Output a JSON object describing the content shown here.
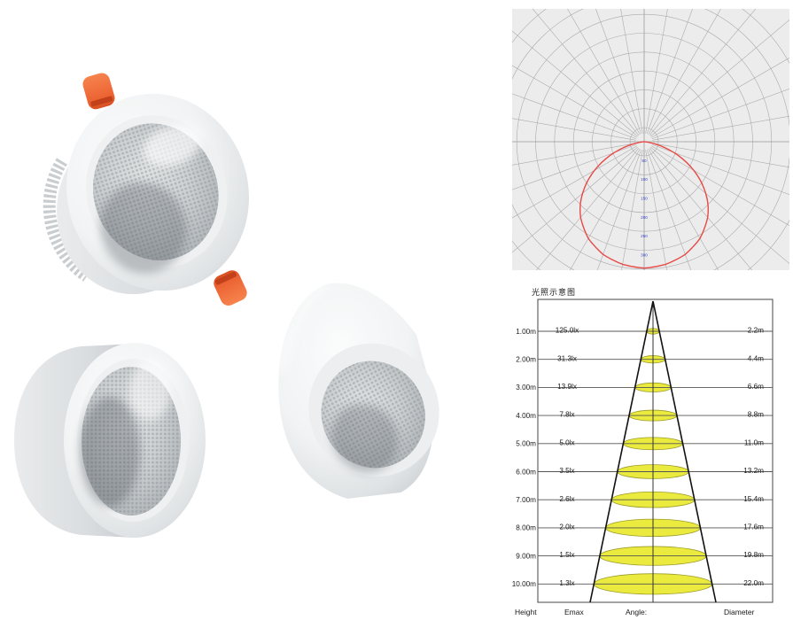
{
  "page": {
    "background": "#ffffff",
    "accent_orange": "#ee6a38",
    "curve_red": "#e64a45",
    "ellipse_yellow": "#ebeb3f",
    "ring_label_blue": "#3a46c8"
  },
  "products": {
    "items": [
      {
        "name": "recessed-downlight-three-quarter-view",
        "features": [
          "white-bezel",
          "faceted-lens",
          "orange-spring-clips",
          "ribbed-heatsink"
        ]
      },
      {
        "name": "surface-downlight-front-view",
        "features": [
          "white-cylinder-body",
          "faceted-lens"
        ]
      },
      {
        "name": "angled-cone-downlight-view",
        "features": [
          "white-teardrop-body",
          "faceted-lens"
        ]
      }
    ]
  },
  "chart_data": [
    {
      "type": "line",
      "subtype": "polar-luminous-intensity",
      "bg": "#ececec",
      "grid_color": "#ababab",
      "axis_color": "#9a9a9a",
      "curve_color": "#e64a45",
      "ring_step": 50,
      "ring_labels": [
        "50",
        "100",
        "150",
        "200",
        "250",
        "300"
      ],
      "ring_label_color": "#3a46c8",
      "symmetric": true,
      "curve_points": {
        "angle_deg_from_nadir": [
          0,
          10,
          20,
          30,
          40,
          45,
          50,
          55,
          60,
          65,
          70,
          75,
          80,
          84,
          88
        ],
        "intensity": [
          335,
          330,
          318,
          296,
          262,
          240,
          213,
          184,
          152,
          118,
          84,
          50,
          20,
          5,
          0
        ]
      }
    },
    {
      "type": "table",
      "title": "光照示意图",
      "columns": [
        "Height",
        "Emax",
        "Angle:",
        "Diameter"
      ],
      "rows": [
        {
          "height": "1.00m",
          "emax": "125.0lx",
          "diameter": "2.2m"
        },
        {
          "height": "2.00m",
          "emax": "31.3lx",
          "diameter": "4.4m"
        },
        {
          "height": "3.00m",
          "emax": "13.9lx",
          "diameter": "6.6m"
        },
        {
          "height": "4.00m",
          "emax": "7.8lx",
          "diameter": "8.8m"
        },
        {
          "height": "5.00m",
          "emax": "5.0lx",
          "diameter": "11.0m"
        },
        {
          "height": "6.00m",
          "emax": "3.5lx",
          "diameter": "13.2m"
        },
        {
          "height": "7.00m",
          "emax": "2.6lx",
          "diameter": "15.4m"
        },
        {
          "height": "8.00m",
          "emax": "2.0lx",
          "diameter": "17.6m"
        },
        {
          "height": "9.00m",
          "emax": "1.5lx",
          "diameter": "19.8m"
        },
        {
          "height": "10.00m",
          "emax": "1.3lx",
          "diameter": "22.0m"
        }
      ],
      "ellipse_fill": "#ebeb3f",
      "ellipse_stroke": "#9b9b28"
    }
  ]
}
